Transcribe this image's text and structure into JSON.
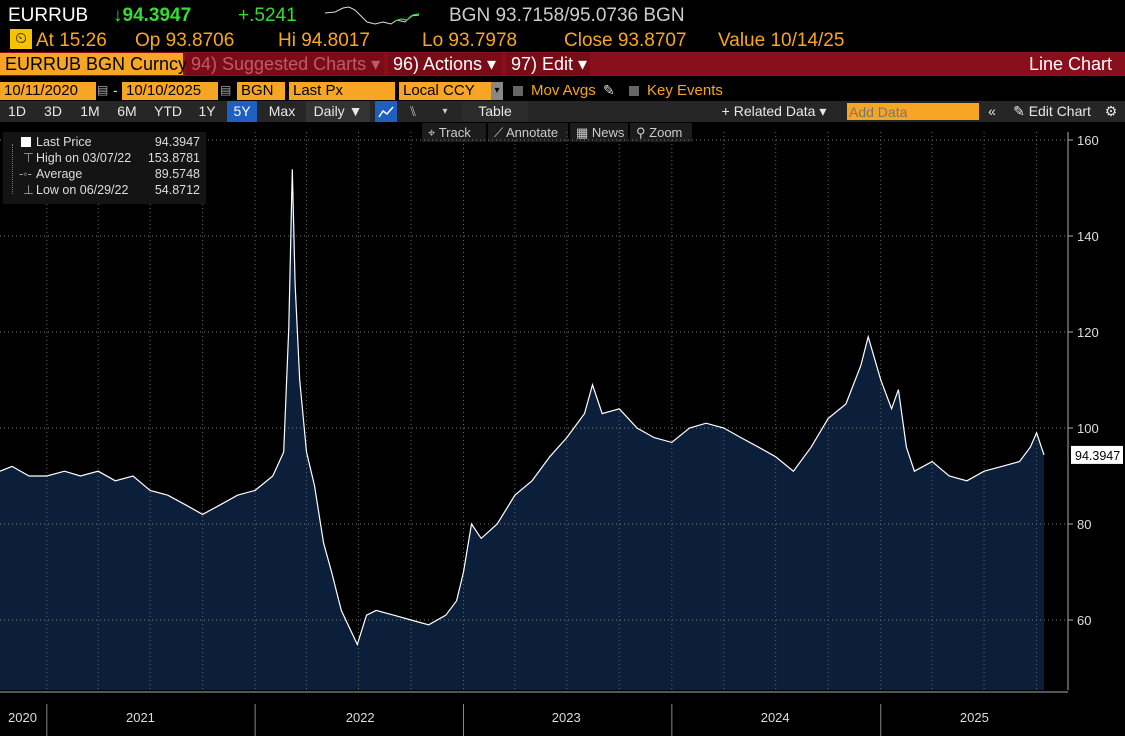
{
  "header": {
    "ticker": "EURRUB",
    "price": "↓94.3947",
    "change": "+.5241",
    "bid_ask": "BGN 93.7158/95.0736 BGN",
    "time": "At 15:26",
    "open": "Op 93.8706",
    "high": "Hi 94.8017",
    "low": "Lo 93.7978",
    "close": "Close 93.8707",
    "value": "Value 10/14/25"
  },
  "menu": {
    "security": "EURRUB BGN Curncy",
    "suggested": "94) Suggested Charts ▾",
    "actions": "96) Actions ▾",
    "edit": "97) Edit ▾",
    "title": "Line Chart"
  },
  "params": {
    "start_date": "10/11/2020",
    "end_date": "10/10/2025",
    "source": "BGN",
    "field": "Last Px",
    "currency": "Local CCY",
    "mov_avgs": "Mov Avgs",
    "key_events": "Key Events"
  },
  "toolbar": {
    "periods": [
      "1D",
      "3D",
      "1M",
      "6M",
      "YTD",
      "1Y",
      "5Y",
      "Max"
    ],
    "active_period": "5Y",
    "frequency": "Daily ▼",
    "table": "Table",
    "related": "+ Related Data ▾",
    "add_data_placeholder": "Add Data",
    "edit_chart": "Edit Chart"
  },
  "tools": [
    "Track",
    "Annotate",
    "News",
    "Zoom"
  ],
  "legend": [
    {
      "label": "Last Price",
      "value": "94.3947"
    },
    {
      "label": "High on 03/07/22",
      "value": "153.8781"
    },
    {
      "label": "Average",
      "value": "89.5748"
    },
    {
      "label": "Low on 06/29/22",
      "value": "54.8712"
    }
  ],
  "colors": {
    "accent": "#f6a623",
    "menu_bar": "#8a0f1c",
    "price_down": "#ff3030",
    "change_up": "#33dd33",
    "area_fill": "#0b1f3a",
    "line": "#ffffff"
  },
  "chart_data": {
    "type": "area",
    "title": "",
    "xlabel": "",
    "ylabel": "",
    "ylim": [
      46,
      163
    ],
    "yticks": [
      60,
      80,
      100,
      120,
      140,
      160
    ],
    "xlim": [
      "2020-10-11",
      "2025-10-14"
    ],
    "x_ticks": [
      "2020",
      "2021",
      "2022",
      "2023",
      "2024",
      "2025"
    ],
    "last_label": "94.3947",
    "grid": true,
    "series": [
      {
        "x": [
          "2020-10-11",
          "2020-11-01",
          "2020-12-01",
          "2021-01-01",
          "2021-02-01",
          "2021-03-01",
          "2021-04-01",
          "2021-05-01",
          "2021-06-01",
          "2021-07-01",
          "2021-08-01",
          "2021-09-01",
          "2021-10-01",
          "2021-11-01",
          "2021-12-01",
          "2022-01-01",
          "2022-02-01",
          "2022-02-20",
          "2022-03-01",
          "2022-03-07",
          "2022-03-12",
          "2022-03-20",
          "2022-04-01",
          "2022-04-15",
          "2022-05-01",
          "2022-05-15",
          "2022-06-01",
          "2022-06-29",
          "2022-07-15",
          "2022-08-01",
          "2022-09-01",
          "2022-10-01",
          "2022-11-01",
          "2022-12-01",
          "2022-12-20",
          "2023-01-01",
          "2023-01-15",
          "2023-02-01",
          "2023-03-01",
          "2023-04-01",
          "2023-05-01",
          "2023-06-01",
          "2023-07-01",
          "2023-08-01",
          "2023-08-15",
          "2023-09-01",
          "2023-10-01",
          "2023-11-01",
          "2023-12-01",
          "2024-01-01",
          "2024-02-01",
          "2024-03-01",
          "2024-04-01",
          "2024-05-01",
          "2024-06-01",
          "2024-07-01",
          "2024-08-01",
          "2024-09-01",
          "2024-10-01",
          "2024-11-01",
          "2024-11-27",
          "2024-12-10",
          "2025-01-01",
          "2025-01-20",
          "2025-02-01",
          "2025-02-15",
          "2025-03-01",
          "2025-04-01",
          "2025-05-01",
          "2025-06-01",
          "2025-07-01",
          "2025-08-01",
          "2025-09-01",
          "2025-09-20",
          "2025-10-01",
          "2025-10-14"
        ],
        "y": [
          91,
          92,
          90,
          90,
          91,
          90,
          91,
          89,
          90,
          87,
          86,
          84,
          82,
          84,
          86,
          87,
          90,
          95,
          121,
          153.9,
          130,
          110,
          95,
          88,
          76,
          70,
          62,
          54.9,
          61,
          62,
          61,
          60,
          59,
          61,
          64,
          70,
          80,
          77,
          80,
          86,
          89,
          94,
          98,
          103,
          109,
          103,
          104,
          100,
          98,
          97,
          100,
          101,
          100,
          98,
          96,
          94,
          91,
          96,
          102,
          105,
          113,
          119,
          110,
          104,
          108,
          96,
          91,
          93,
          90,
          89,
          91,
          92,
          93,
          96,
          99,
          94.3947
        ]
      }
    ]
  }
}
